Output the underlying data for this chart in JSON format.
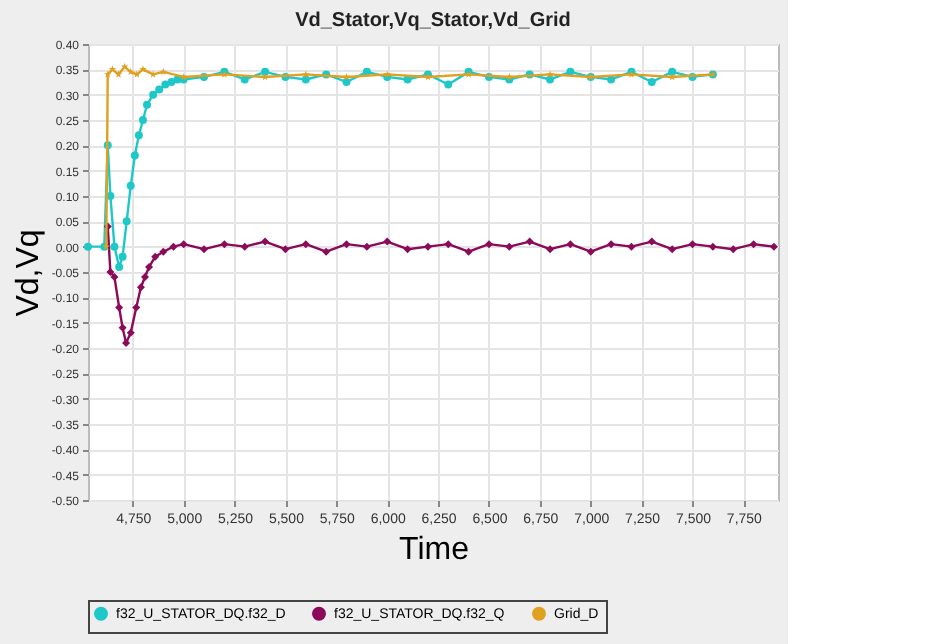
{
  "chart_data": {
    "type": "line",
    "title": "Vd_Stator,Vq_Stator,Vd_Grid",
    "xlabel": "Time",
    "ylabel": "Vd,Vq",
    "xlim": [
      4530,
      7920
    ],
    "xticks": [
      {
        "value": 4750,
        "label": "4,750"
      },
      {
        "value": 5000,
        "label": "5,000"
      },
      {
        "value": 5250,
        "label": "5,250"
      },
      {
        "value": 5500,
        "label": "5,500"
      },
      {
        "value": 5750,
        "label": "5,750"
      },
      {
        "value": 6000,
        "label": "6,000"
      },
      {
        "value": 6250,
        "label": "6,250"
      },
      {
        "value": 6500,
        "label": "6,500"
      },
      {
        "value": 6750,
        "label": "6,750"
      },
      {
        "value": 7000,
        "label": "7,000"
      },
      {
        "value": 7250,
        "label": "7,250"
      },
      {
        "value": 7500,
        "label": "7,500"
      },
      {
        "value": 7750,
        "label": "7,750"
      }
    ],
    "ylim": [
      -0.5,
      0.4
    ],
    "yticks": [
      {
        "value": -0.5,
        "label": "-0.50"
      },
      {
        "value": -0.45,
        "label": "-0.45"
      },
      {
        "value": -0.4,
        "label": "-0.40"
      },
      {
        "value": -0.35,
        "label": "-0.35"
      },
      {
        "value": -0.3,
        "label": "-0.30"
      },
      {
        "value": -0.25,
        "label": "-0.25"
      },
      {
        "value": -0.2,
        "label": "-0.20"
      },
      {
        "value": -0.15,
        "label": "-0.15"
      },
      {
        "value": -0.1,
        "label": "-0.10"
      },
      {
        "value": -0.05,
        "label": "-0.05"
      },
      {
        "value": 0,
        "label": "0.00"
      },
      {
        "value": 0.05,
        "label": "0.05"
      },
      {
        "value": 0.1,
        "label": "0.10"
      },
      {
        "value": 0.15,
        "label": "0.15"
      },
      {
        "value": 0.2,
        "label": "0.20"
      },
      {
        "value": 0.25,
        "label": "0.25"
      },
      {
        "value": 0.3,
        "label": "0.30"
      },
      {
        "value": 0.35,
        "label": "0.35"
      },
      {
        "value": 0.4,
        "label": "0.40"
      }
    ],
    "grid": true,
    "legend": "bottom",
    "line_style": "solid",
    "series": [
      {
        "name": "f32_U_STATOR_DQ.f32_D",
        "color": "#1ec8c8",
        "marker": "circle",
        "x": [
          4530,
          4610,
          4627,
          4640,
          4660,
          4683,
          4700,
          4720,
          4740,
          4760,
          4780,
          4800,
          4820,
          4850,
          4880,
          4910,
          4940,
          4970,
          5000,
          5100,
          5200,
          5300,
          5400,
          5500,
          5600,
          5700,
          5800,
          5900,
          6000,
          6100,
          6200,
          6300,
          6400,
          6500,
          6600,
          6700,
          6800,
          6900,
          7000,
          7100,
          7200,
          7300,
          7400,
          7500,
          7600
        ],
        "values": [
          0,
          0,
          0.2,
          0.1,
          0,
          -0.04,
          -0.02,
          0.05,
          0.12,
          0.18,
          0.22,
          0.25,
          0.28,
          0.3,
          0.31,
          0.32,
          0.325,
          0.33,
          0.33,
          0.335,
          0.345,
          0.33,
          0.345,
          0.335,
          0.33,
          0.34,
          0.325,
          0.345,
          0.335,
          0.33,
          0.34,
          0.32,
          0.345,
          0.335,
          0.33,
          0.34,
          0.33,
          0.345,
          0.335,
          0.33,
          0.345,
          0.325,
          0.345,
          0.335,
          0.34
        ]
      },
      {
        "name": "f32_U_STATOR_DQ.f32_Q",
        "color": "#8b0a5a",
        "marker": "diamond",
        "x": [
          4627,
          4640,
          4660,
          4683,
          4700,
          4717,
          4740,
          4767,
          4790,
          4810,
          4830,
          4860,
          4900,
          4950,
          5000,
          5100,
          5200,
          5300,
          5400,
          5500,
          5600,
          5700,
          5800,
          5900,
          6000,
          6100,
          6200,
          6300,
          6400,
          6500,
          6600,
          6700,
          6800,
          6900,
          7000,
          7100,
          7200,
          7300,
          7400,
          7500,
          7600,
          7700,
          7800,
          7900
        ],
        "values": [
          0.04,
          -0.05,
          -0.06,
          -0.12,
          -0.16,
          -0.19,
          -0.17,
          -0.12,
          -0.08,
          -0.06,
          -0.04,
          -0.02,
          -0.01,
          0,
          0.005,
          -0.005,
          0.005,
          0,
          0.01,
          -0.005,
          0.005,
          -0.01,
          0.005,
          0,
          0.01,
          -0.005,
          0,
          0.005,
          -0.01,
          0.005,
          0,
          0.01,
          -0.005,
          0.005,
          -0.01,
          0.005,
          0,
          0.01,
          -0.005,
          0.005,
          0,
          -0.005,
          0.005,
          0
        ]
      },
      {
        "name": "Grid_D",
        "color": "#e0a020",
        "marker": "star",
        "x": [
          4620,
          4627,
          4650,
          4680,
          4710,
          4740,
          4770,
          4800,
          4850,
          4900,
          5000,
          5200,
          5400,
          5600,
          5800,
          6000,
          6200,
          6400,
          6600,
          6800,
          7000,
          7200,
          7400,
          7600
        ],
        "values": [
          0,
          0.34,
          0.35,
          0.34,
          0.355,
          0.345,
          0.34,
          0.35,
          0.34,
          0.345,
          0.335,
          0.34,
          0.335,
          0.34,
          0.335,
          0.34,
          0.335,
          0.34,
          0.335,
          0.34,
          0.335,
          0.34,
          0.335,
          0.34
        ]
      }
    ]
  }
}
